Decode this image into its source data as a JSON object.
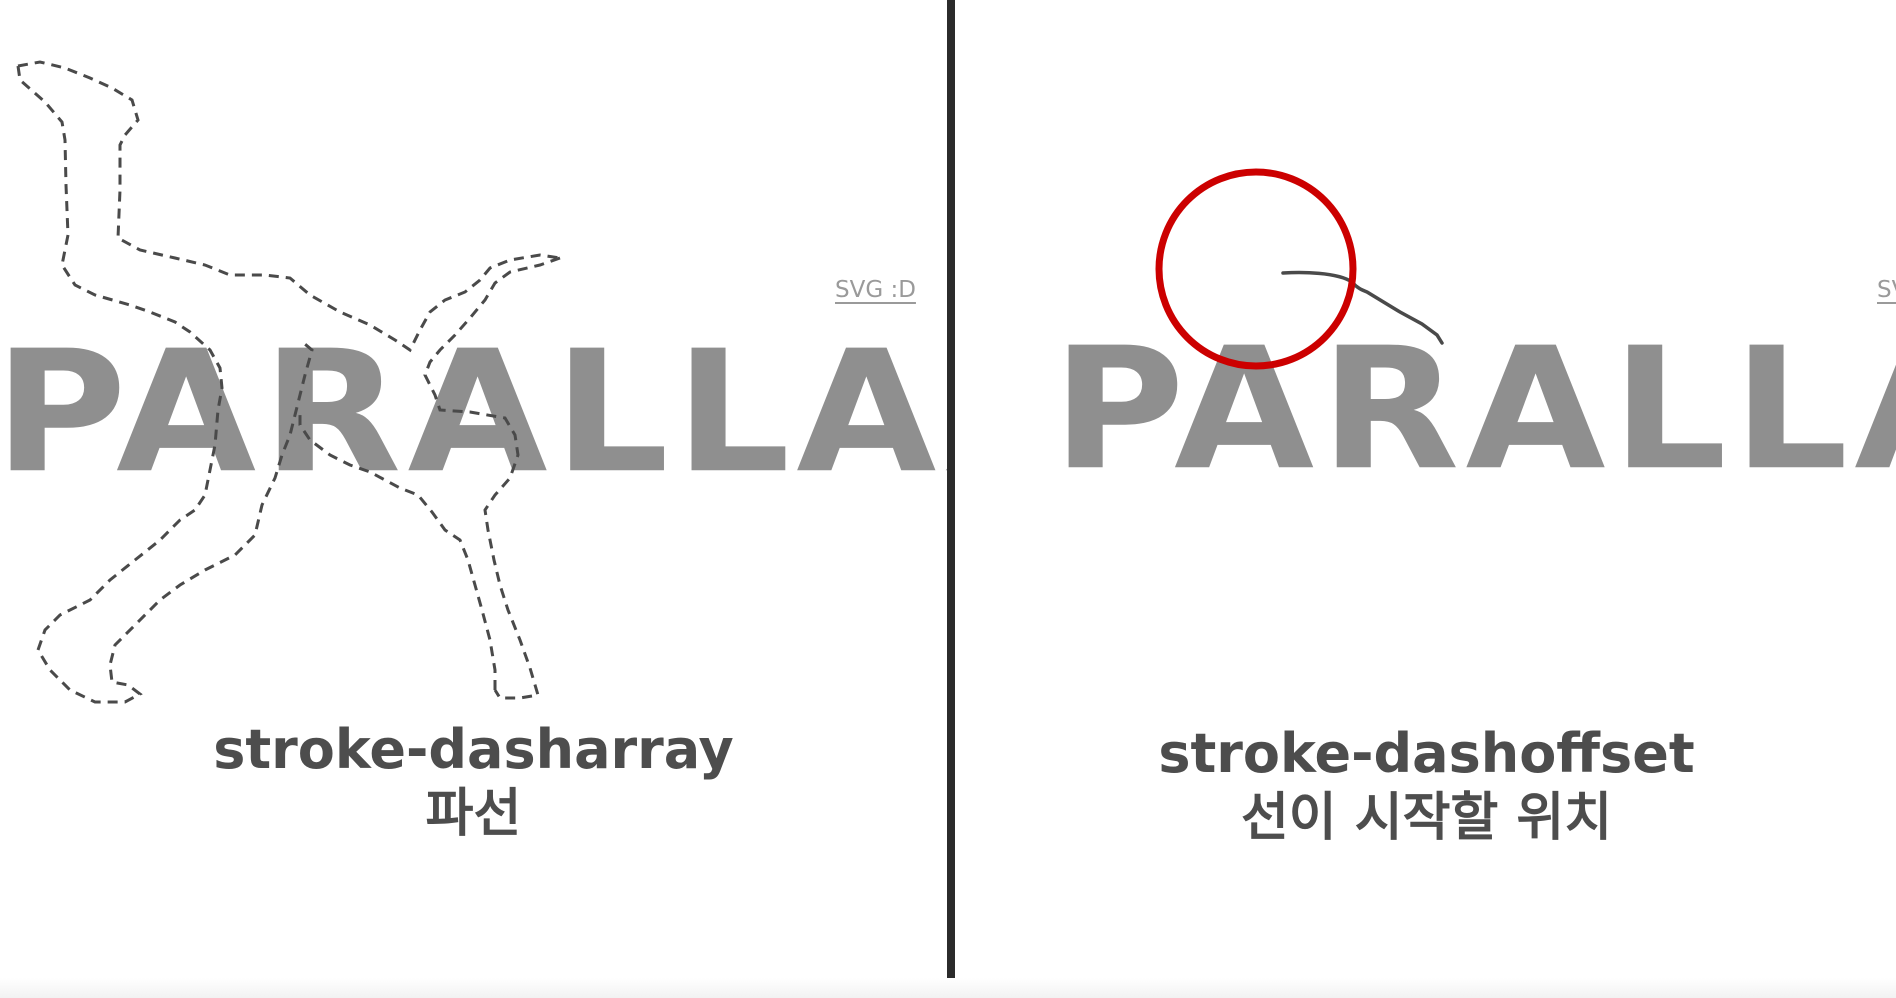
{
  "left": {
    "word": "PARALLAX",
    "link": "SVG :D",
    "caption_code": "stroke-dasharray",
    "caption_ko": "파선"
  },
  "right": {
    "word": "PARALLAX",
    "link": "SVG :D",
    "caption_code": "stroke-dashoffset",
    "caption_ko": "선이 시작할 위치"
  },
  "colors": {
    "word": "#8f8f8f",
    "caption": "#4d4d4d",
    "dashed_path": "#4a4a4a",
    "highlight_circle": "#cc0000",
    "divider": "#2b2b2b"
  },
  "icons": {
    "highlight": "red-circle-highlight",
    "figure": "dashed-runner-outline"
  }
}
